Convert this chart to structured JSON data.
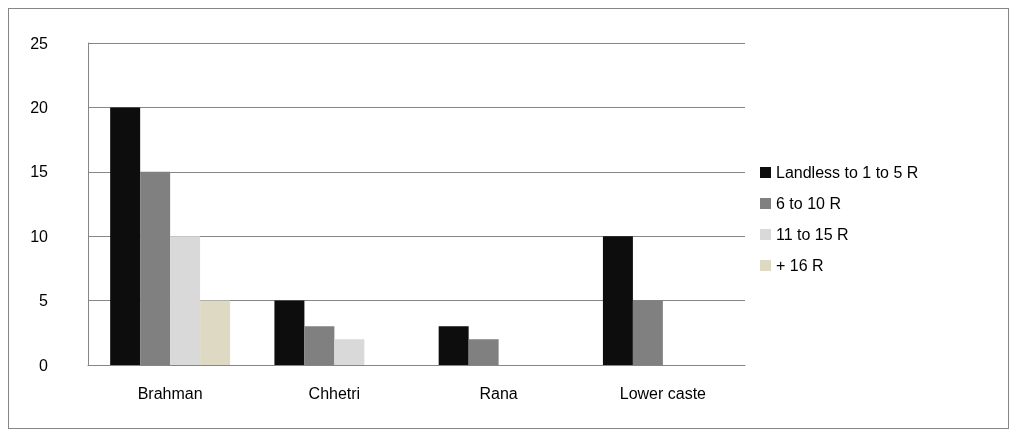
{
  "chart_data": {
    "type": "bar",
    "categories": [
      "Brahman",
      "Chhetri",
      "Rana",
      "Lower caste"
    ],
    "series": [
      {
        "name": "Landless to 1 to 5 R",
        "color": "#0d0d0d",
        "values": [
          20,
          5,
          3,
          10
        ]
      },
      {
        "name": "6 to 10 R",
        "color": "#808080",
        "values": [
          15,
          3,
          2,
          5
        ]
      },
      {
        "name": "11 to 15 R",
        "color": "#d9d9d9",
        "values": [
          10,
          2,
          0,
          0
        ]
      },
      {
        "name": "+ 16 R",
        "color": "#ddd9c3",
        "values": [
          5,
          0,
          0,
          0
        ]
      }
    ],
    "ylim": [
      0,
      25
    ],
    "yticks": [
      0,
      5,
      10,
      15,
      20,
      25
    ],
    "grid": "y",
    "legend": "right"
  }
}
